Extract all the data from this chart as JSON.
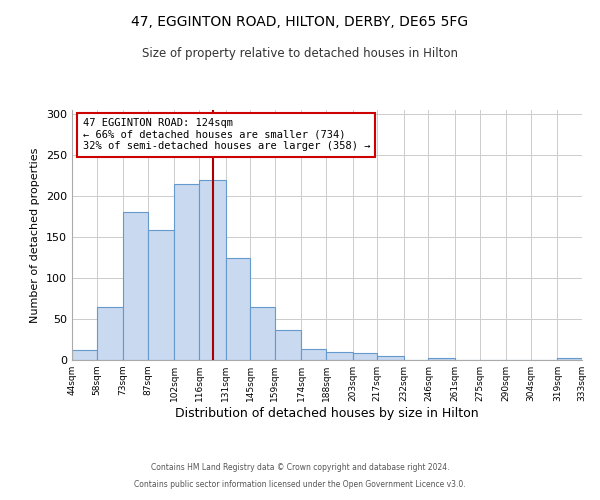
{
  "title": "47, EGGINTON ROAD, HILTON, DERBY, DE65 5FG",
  "subtitle": "Size of property relative to detached houses in Hilton",
  "xlabel": "Distribution of detached houses by size in Hilton",
  "ylabel": "Number of detached properties",
  "bin_edges": [
    44,
    58,
    73,
    87,
    102,
    116,
    131,
    145,
    159,
    174,
    188,
    203,
    217,
    232,
    246,
    261,
    275,
    290,
    304,
    319,
    333
  ],
  "bin_heights": [
    12,
    65,
    181,
    158,
    215,
    220,
    125,
    65,
    37,
    14,
    10,
    8,
    5,
    0,
    3,
    0,
    0,
    0,
    0,
    3
  ],
  "bar_facecolor": "#c9d9f0",
  "bar_edgecolor": "#6699cc",
  "vline_x": 124,
  "vline_color": "#aa0000",
  "annotation_text": "47 EGGINTON ROAD: 124sqm\n← 66% of detached houses are smaller (734)\n32% of semi-detached houses are larger (358) →",
  "annotation_box_edgecolor": "#cc0000",
  "annotation_box_facecolor": "#ffffff",
  "ylim": [
    0,
    305
  ],
  "tick_labels": [
    "44sqm",
    "58sqm",
    "73sqm",
    "87sqm",
    "102sqm",
    "116sqm",
    "131sqm",
    "145sqm",
    "159sqm",
    "174sqm",
    "188sqm",
    "203sqm",
    "217sqm",
    "232sqm",
    "246sqm",
    "261sqm",
    "275sqm",
    "290sqm",
    "304sqm",
    "319sqm",
    "333sqm"
  ],
  "footnote1": "Contains HM Land Registry data © Crown copyright and database right 2024.",
  "footnote2": "Contains public sector information licensed under the Open Government Licence v3.0.",
  "background_color": "#ffffff",
  "grid_color": "#cccccc"
}
